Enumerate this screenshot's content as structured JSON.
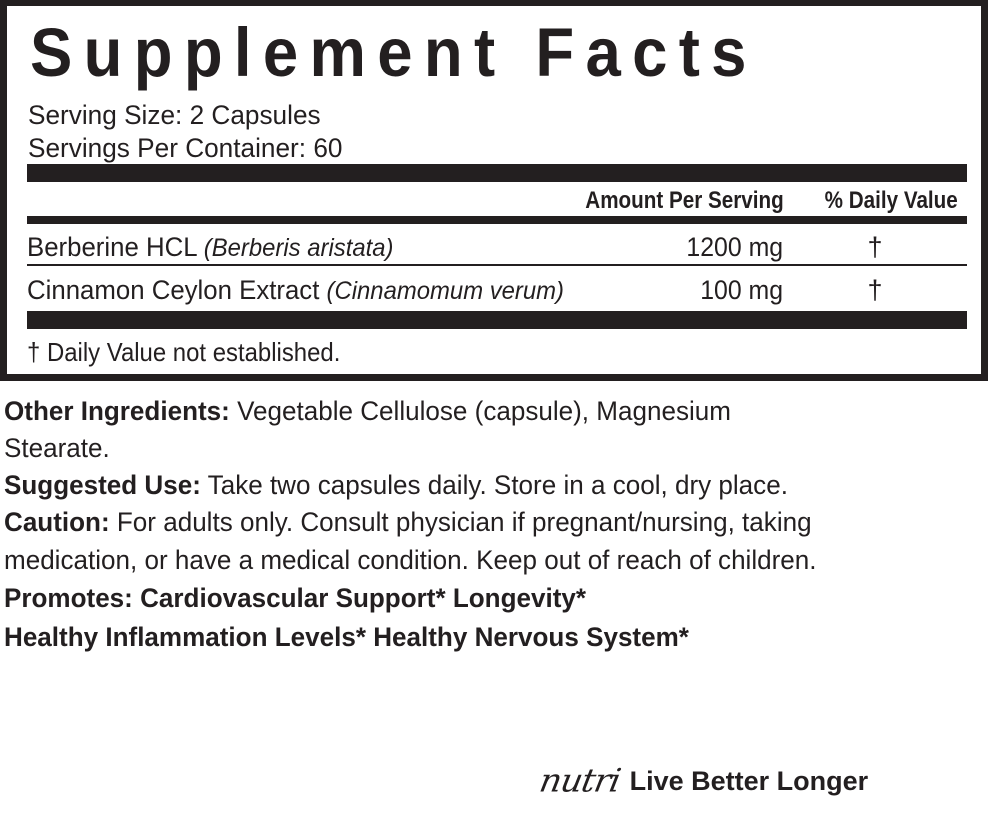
{
  "panel": {
    "title": "Supplement Facts",
    "serving_size": "Serving Size: 2 Capsules",
    "servings_per_container": "Servings Per Container: 60",
    "columns": {
      "amount": "Amount Per Serving",
      "daily_value": "% Daily Value"
    },
    "rows": [
      {
        "name": "Berberine HCL ",
        "latin": "(Berberis aristata)",
        "amount": "1200 mg",
        "dv": "†"
      },
      {
        "name": "Cinnamon Ceylon Extract ",
        "latin": "(Cinnamomum verum)",
        "amount": "100 mg",
        "dv": "†"
      }
    ],
    "footnote": "† Daily Value not established."
  },
  "info": {
    "other_ingredients_label": "Other Ingredients:",
    "other_ingredients_text": " Vegetable Cellulose (capsule), Magnesium",
    "other_ingredients_text_2": "Stearate.",
    "suggested_use_label": "Suggested Use:",
    "suggested_use_text": " Take two capsules daily. Store in a cool, dry place.",
    "caution_label": "Caution:",
    "caution_text": " For adults only. Consult physician if pregnant/nursing, taking",
    "caution_text_2": "medication, or have a medical condition. Keep out of reach of children.",
    "promotes_line_1": "Promotes:  Cardiovascular Support*  Longevity*",
    "promotes_line_2": "Healthy Inflammation Levels*  Healthy Nervous System*"
  },
  "brand": {
    "logo": "nutri",
    "tagline": "Live Better Longer"
  },
  "colors": {
    "ink": "#231f20",
    "background": "#ffffff"
  }
}
